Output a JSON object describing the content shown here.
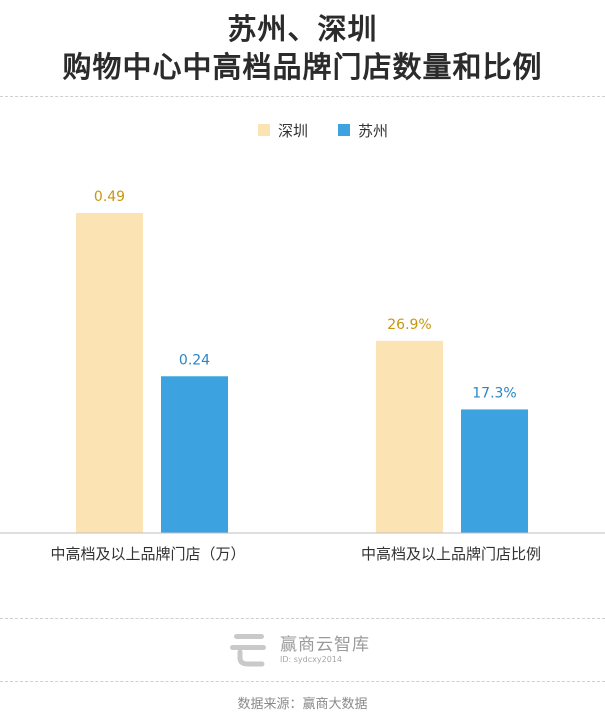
{
  "header": {
    "title_line1": "苏州、深圳",
    "title_line2": "购物中心中高档品牌门店数量和比例"
  },
  "colors": {
    "shenzhen": "#fce3b4",
    "suzhou": "#3ca3e0",
    "shenzhen_label": "#c8960f",
    "suzhou_label": "#2a86c4"
  },
  "chart_data": [
    {
      "type": "bar",
      "categories": [
        "中高档及以上品牌门店（万）"
      ],
      "series": [
        {
          "name": "深圳",
          "values": [
            0.49
          ],
          "labels": [
            "0.49"
          ]
        },
        {
          "name": "苏州",
          "values": [
            0.24
          ],
          "labels": [
            "0.24"
          ]
        }
      ],
      "ylim": [
        0,
        0.49
      ],
      "legend": "top-center",
      "grid": false
    },
    {
      "type": "bar",
      "categories": [
        "中高档及以上品牌门店比例"
      ],
      "series": [
        {
          "name": "深圳",
          "values": [
            26.9
          ],
          "labels": [
            "26.9%"
          ]
        },
        {
          "name": "苏州",
          "values": [
            17.3
          ],
          "labels": [
            "17.3%"
          ]
        }
      ],
      "ylim": [
        0,
        44.8
      ],
      "legend": "top-center",
      "grid": false
    }
  ],
  "legend": [
    {
      "name": "深圳",
      "color": "#fce3b4"
    },
    {
      "name": "苏州",
      "color": "#3ca3e0"
    }
  ],
  "footer": {
    "brand": "赢商云智库",
    "id": "ID: sydcxy2014",
    "logo_icon": "brand-logo-icon",
    "source": "数据来源：赢商大数据"
  }
}
